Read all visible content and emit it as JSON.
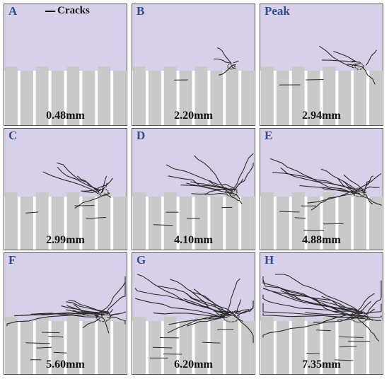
{
  "legend": {
    "label": "Cracks"
  },
  "colors": {
    "soil": "#d8cfe8",
    "blocks": "#c9c9c9",
    "cracks": "#2a2a2a",
    "label": "#2e4f8f"
  },
  "panels": [
    {
      "label": "A",
      "displacement": "0.48mm",
      "crack_level": 0
    },
    {
      "label": "B",
      "displacement": "2.20mm",
      "crack_level": 1
    },
    {
      "label": "Peak",
      "displacement": "2.94mm",
      "crack_level": 2
    },
    {
      "label": "C",
      "displacement": "2.99mm",
      "crack_level": 3
    },
    {
      "label": "D",
      "displacement": "4.10mm",
      "crack_level": 4
    },
    {
      "label": "E",
      "displacement": "4.88mm",
      "crack_level": 5
    },
    {
      "label": "F",
      "displacement": "5.60mm",
      "crack_level": 6
    },
    {
      "label": "G",
      "displacement": "6.20mm",
      "crack_level": 7
    },
    {
      "label": "H",
      "displacement": "7.35mm",
      "crack_level": 8
    }
  ]
}
